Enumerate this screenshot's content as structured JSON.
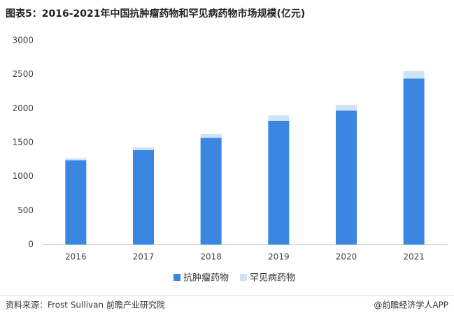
{
  "chart_data": {
    "type": "bar",
    "stacked": true,
    "title": "图表5：2016-2021年中国抗肿瘤药物和罕见病药物市场规模(亿元)",
    "categories": [
      "2016",
      "2017",
      "2018",
      "2019",
      "2020",
      "2021"
    ],
    "series": [
      {
        "name": "抗肿瘤药物",
        "color": "#3a86e0",
        "values": [
          1240,
          1390,
          1570,
          1820,
          1970,
          2440
        ]
      },
      {
        "name": "罕见病药物",
        "color": "#cfe2f7",
        "values": [
          30,
          40,
          55,
          80,
          85,
          110
        ]
      }
    ],
    "ylim": [
      0,
      3000
    ],
    "yticks": [
      0,
      500,
      1000,
      1500,
      2000,
      2500,
      3000
    ],
    "grid": false,
    "legend": "bottom",
    "source": "资料来源：Frost Sullivan 前瞻产业研究院",
    "credit": "@前瞻经济学人APP"
  }
}
